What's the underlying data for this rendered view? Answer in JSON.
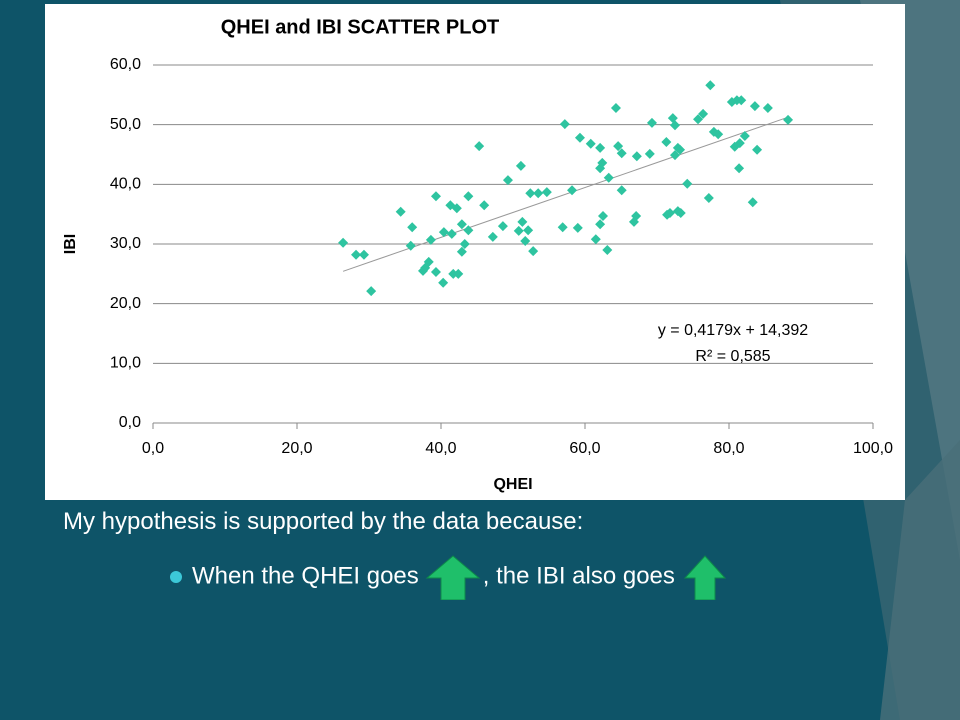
{
  "chart_data": {
    "type": "scatter",
    "title": "QHEI and IBI SCATTER PLOT",
    "x_label": "QHEI",
    "y_label": "IBI",
    "color": "#2ec4a0",
    "xlim": [
      0,
      100
    ],
    "ylim": [
      0,
      60
    ],
    "xticks": [
      {
        "value": 0,
        "label": "0,0"
      },
      {
        "value": 20,
        "label": "20,0"
      },
      {
        "value": 40,
        "label": "40,0"
      },
      {
        "value": 60,
        "label": "60,0"
      },
      {
        "value": 80,
        "label": "80,0"
      },
      {
        "value": 100,
        "label": "100,0"
      }
    ],
    "yticks": [
      {
        "value": 0,
        "label": "0,0"
      },
      {
        "value": 10,
        "label": "10,0"
      },
      {
        "value": 20,
        "label": "20,0"
      },
      {
        "value": 30,
        "label": "30,0"
      },
      {
        "value": 40,
        "label": "40,0"
      },
      {
        "value": 50,
        "label": "50,0"
      },
      {
        "value": 60,
        "label": "60,0"
      }
    ],
    "grid": true,
    "x": [
      26.4,
      28.2,
      29.3,
      30.3,
      34.4,
      36.0,
      35.8,
      37.5,
      37.8,
      38.3,
      38.6,
      39.3,
      39.3,
      40.3,
      40.4,
      41.3,
      41.5,
      41.7,
      42.2,
      42.4,
      42.9,
      42.9,
      43.3,
      43.8,
      43.8,
      45.3,
      46.0,
      47.2,
      48.6,
      49.3,
      50.8,
      51.1,
      51.3,
      51.7,
      52.1,
      52.4,
      52.8,
      53.5,
      54.7,
      56.9,
      57.2,
      58.2,
      59.0,
      59.3,
      60.8,
      61.5,
      62.1,
      62.1,
      62.1,
      62.4,
      62.5,
      63.1,
      63.3,
      64.3,
      64.6,
      65.1,
      65.1,
      66.8,
      67.1,
      67.2,
      69.0,
      69.3,
      71.3,
      71.4,
      71.8,
      72.2,
      72.5,
      72.5,
      72.9,
      72.9,
      73.2,
      73.3,
      74.2,
      75.7,
      76.4,
      77.2,
      77.4,
      77.9,
      78.5,
      80.4,
      80.8,
      81.1,
      81.4,
      81.5,
      81.7,
      82.2,
      83.3,
      83.6,
      83.9,
      85.4,
      88.2
    ],
    "values": [
      30.2,
      28.2,
      28.2,
      22.1,
      35.4,
      32.8,
      29.7,
      25.5,
      26.0,
      27.0,
      30.7,
      25.3,
      38.0,
      23.5,
      32.0,
      36.5,
      31.7,
      25.0,
      36.0,
      25.0,
      33.3,
      28.7,
      30.0,
      32.3,
      38.0,
      46.4,
      36.5,
      31.2,
      33.0,
      40.7,
      32.2,
      43.1,
      33.7,
      30.5,
      32.3,
      38.5,
      28.8,
      38.5,
      38.7,
      32.8,
      50.1,
      39.0,
      32.7,
      47.8,
      46.8,
      30.8,
      46.1,
      42.7,
      33.3,
      43.6,
      34.7,
      29.0,
      41.1,
      52.8,
      46.4,
      39.0,
      45.2,
      33.7,
      34.7,
      44.7,
      45.1,
      50.3,
      47.1,
      34.9,
      35.2,
      51.1,
      49.9,
      44.9,
      35.5,
      46.1,
      45.8,
      35.2,
      40.1,
      50.9,
      51.8,
      37.7,
      56.6,
      48.8,
      48.4,
      53.8,
      46.3,
      54.1,
      42.7,
      46.9,
      54.1,
      48.1,
      37.0,
      53.1,
      45.8,
      52.8,
      50.8
    ],
    "trendline": {
      "slope": 0.4179,
      "intercept": 14.392,
      "label": "y = 0,4179x + 14,392",
      "r2": 0.585,
      "r2_label": "R² = 0,585"
    }
  },
  "slide": {
    "text": "My hypothesis is supported by the data because:",
    "bullet": {
      "before": "When the QHEI goes",
      "after": ", the IBI also goes"
    }
  }
}
